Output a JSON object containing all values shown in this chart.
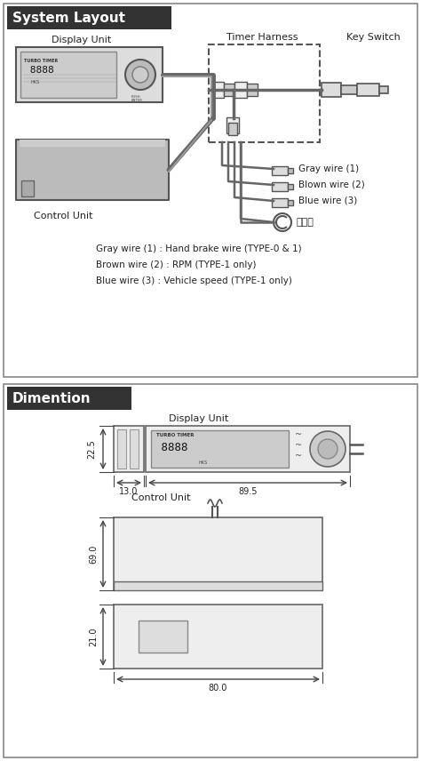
{
  "title_system": "System Layout",
  "title_dimension": "Dimention",
  "bg_color": "#ffffff",
  "header_bg": "#333333",
  "header_text_color": "#ffffff",
  "text_color": "#222222",
  "wire_labels": [
    "Gray wire (1)",
    "Blown wire (2)",
    "Blue wire (3)"
  ],
  "wire_notes": [
    "Gray wire (1) : Hand brake wire (TYPE-0 & 1)",
    "Brown wire (2) : RPM (TYPE-1 only)",
    "Blue wire (3) : Vehicle speed (TYPE-1 only)"
  ],
  "ground_label": "アース",
  "display_label_sys": "Display Unit",
  "control_label_sys": "Control Unit",
  "harness_label": "Timer Harness",
  "keyswitch_label": "Key Switch",
  "display_label_dim": "Display Unit",
  "control_label_dim": "Control Unit",
  "dim_13": "13.0",
  "dim_22": "22.5",
  "dim_89": "89.5",
  "dim_69": "69.0",
  "dim_21": "21.0",
  "dim_80": "80.0"
}
